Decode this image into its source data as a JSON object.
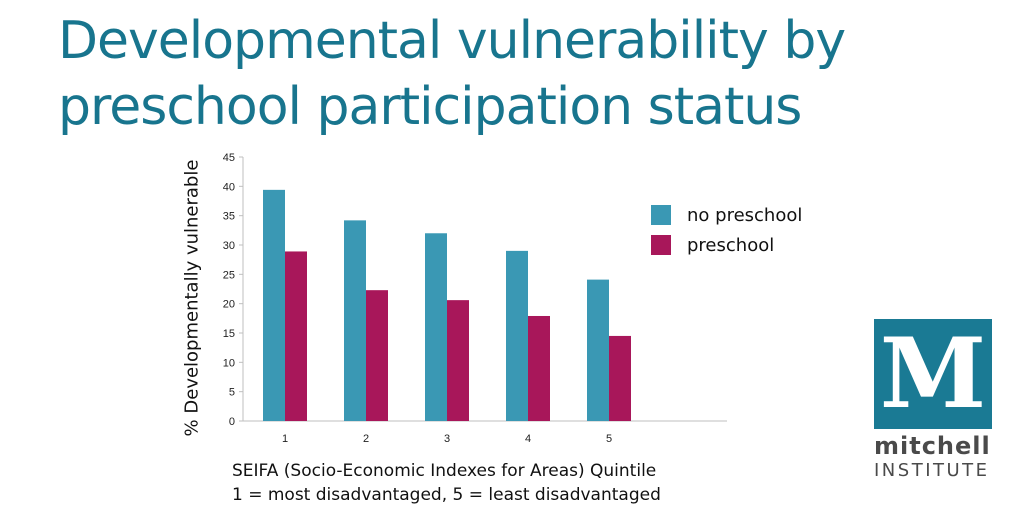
{
  "header": {
    "title_line1": "Developmental vulnerability by",
    "title_line2": "preschool participation status"
  },
  "chart_data": {
    "type": "bar",
    "categories": [
      "1",
      "2",
      "3",
      "4",
      "5"
    ],
    "series": [
      {
        "name": "no preschool",
        "values": [
          39.4,
          34.2,
          32.0,
          29.0,
          24.1
        ],
        "color": "#3a98b4"
      },
      {
        "name": "preschool",
        "values": [
          28.9,
          22.3,
          20.6,
          17.9,
          14.5
        ],
        "color": "#a8175a"
      }
    ],
    "ylabel": "% Developmentally vulnerable",
    "xlabel_line1": "SEIFA (Socio-Economic Indexes for Areas) Quintile",
    "xlabel_line2": "1 = most disadvantaged, 5 = least disadvantaged",
    "ylim": [
      0,
      45
    ],
    "yticks": [
      0,
      5,
      10,
      15,
      20,
      25,
      30,
      35,
      40,
      45
    ],
    "grid": false,
    "legend_position": "right"
  },
  "logo": {
    "letter": "M",
    "word1": "mitchell",
    "word2": "INSTITUTE",
    "color": "#1a7a94"
  }
}
